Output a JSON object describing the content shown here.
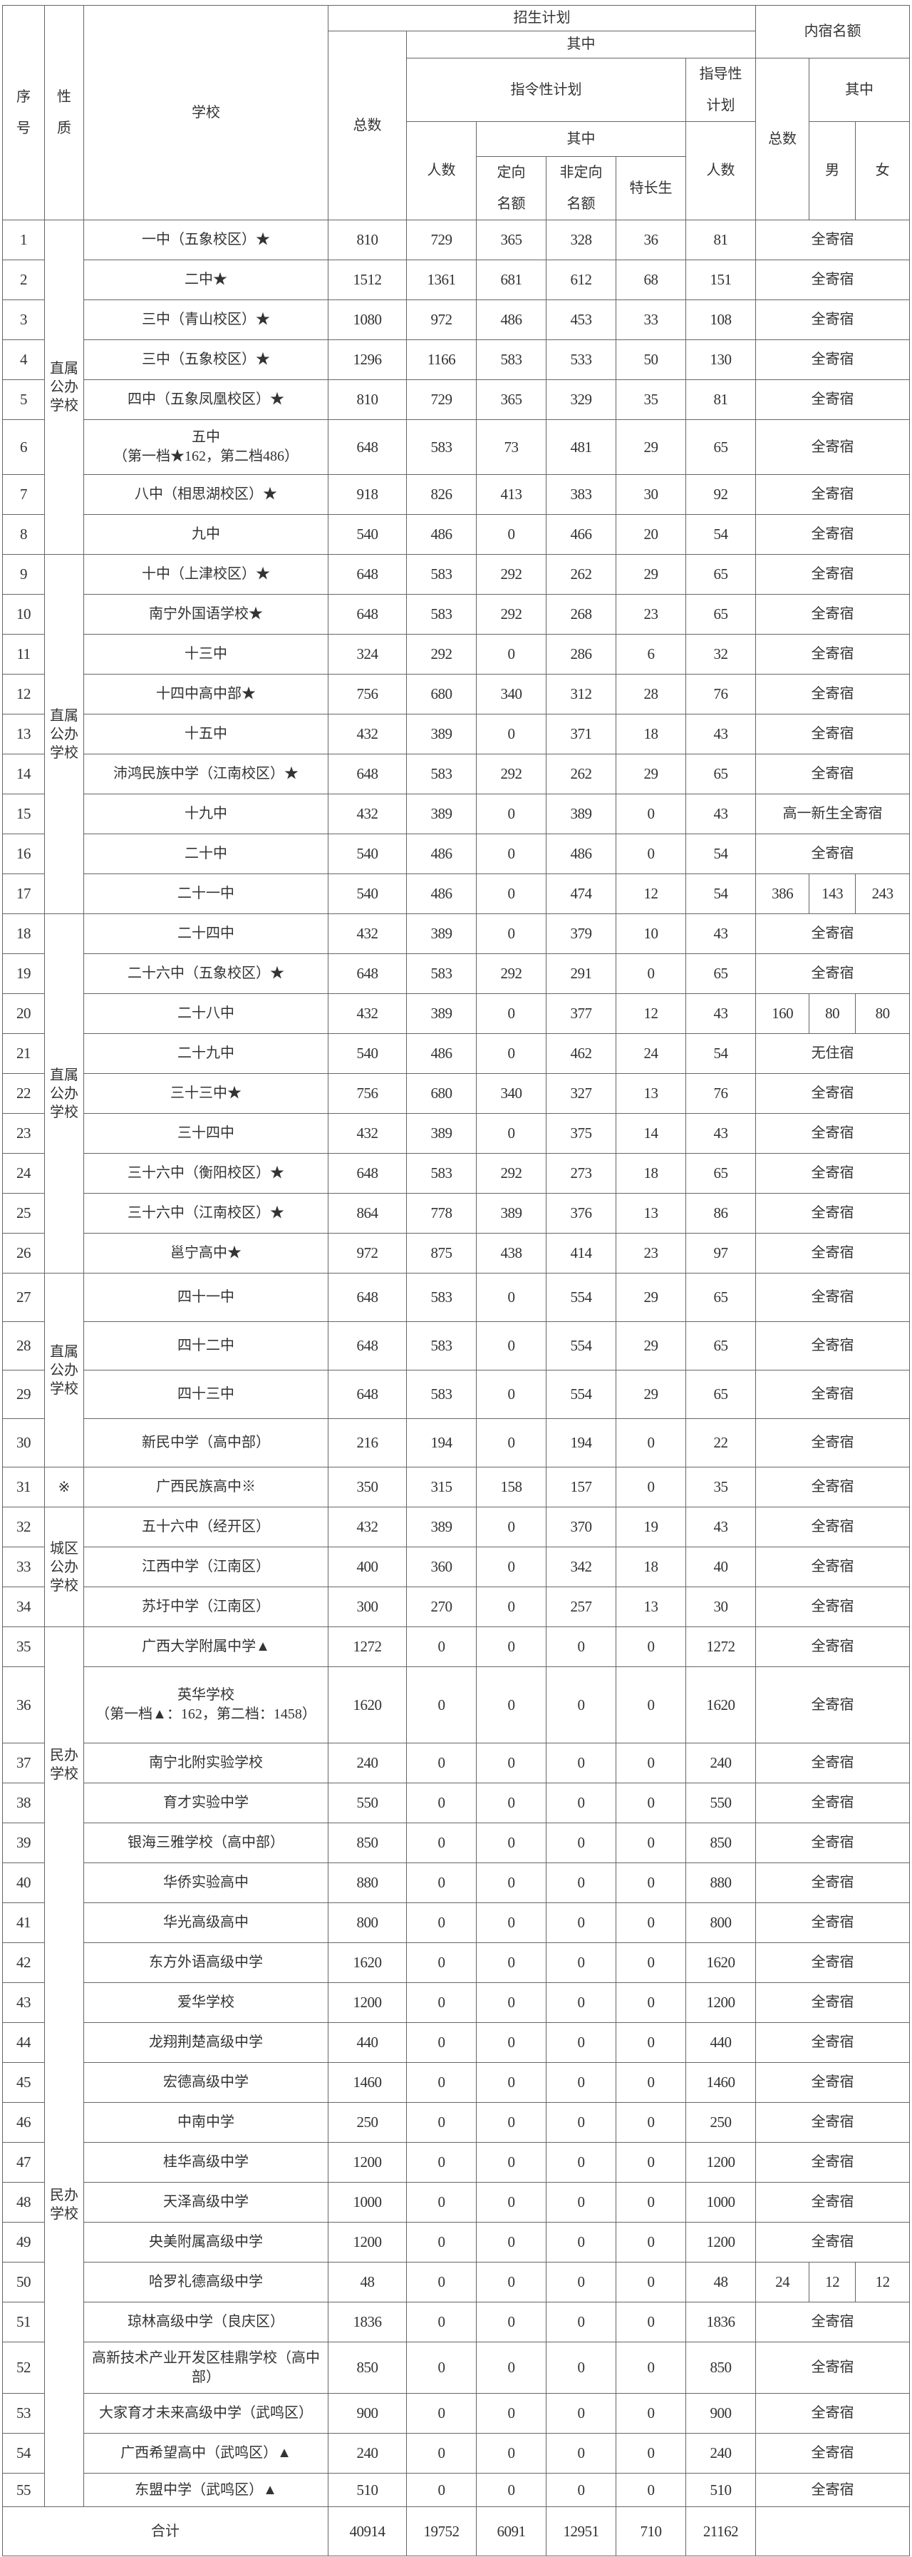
{
  "header": {
    "seq": "序号",
    "nature": "性质",
    "school": "学校",
    "plan": "招生计划",
    "plan_total": "总数",
    "plan_of_which": "其中",
    "directive": "指令性计划",
    "directive_count": "人数",
    "directive_of_which": "其中",
    "targeted": "定向名额",
    "non_targeted": "非定向名额",
    "special": "特长生",
    "guidance": "指导性计划",
    "guidance_count": "人数",
    "dorm": "内宿名额",
    "dorm_total": "总数",
    "dorm_of_which": "其中",
    "male": "男",
    "female": "女"
  },
  "groups": [
    {
      "label": "直属公办学校",
      "first": 1,
      "last": 8
    },
    {
      "label": "直属公办学校",
      "first": 9,
      "last": 17
    },
    {
      "label": "直属公办学校",
      "first": 18,
      "last": 26
    },
    {
      "label": "直属公办学校",
      "first": 27,
      "last": 30
    },
    {
      "label": "※",
      "first": 31,
      "last": 31
    },
    {
      "label": "城区公办学校",
      "first": 32,
      "last": 34
    },
    {
      "label": "民办学校",
      "first": 35,
      "last": 40
    },
    {
      "label": "民办学校",
      "first": 41,
      "last": 55
    }
  ],
  "rows": [
    {
      "seq": "1",
      "school": "一中（五象校区）★",
      "total": "810",
      "directive": "729",
      "targeted": "365",
      "non_targeted": "328",
      "special": "36",
      "guidance": "81",
      "dorm": "全寄宿"
    },
    {
      "seq": "2",
      "school": "二中★",
      "total": "1512",
      "directive": "1361",
      "targeted": "681",
      "non_targeted": "612",
      "special": "68",
      "guidance": "151",
      "dorm": "全寄宿"
    },
    {
      "seq": "3",
      "school": "三中（青山校区）★",
      "total": "1080",
      "directive": "972",
      "targeted": "486",
      "non_targeted": "453",
      "special": "33",
      "guidance": "108",
      "dorm": "全寄宿"
    },
    {
      "seq": "4",
      "school": "三中（五象校区）★",
      "total": "1296",
      "directive": "1166",
      "targeted": "583",
      "non_targeted": "533",
      "special": "50",
      "guidance": "130",
      "dorm": "全寄宿"
    },
    {
      "seq": "5",
      "school": "四中（五象凤凰校区）★",
      "total": "810",
      "directive": "729",
      "targeted": "365",
      "non_targeted": "329",
      "special": "35",
      "guidance": "81",
      "dorm": "全寄宿"
    },
    {
      "seq": "6",
      "school": "五中",
      "school_note": "（第一档★162，第二档486）",
      "total": "648",
      "directive": "583",
      "targeted": "73",
      "non_targeted": "481",
      "special": "29",
      "guidance": "65",
      "dorm": "全寄宿"
    },
    {
      "seq": "7",
      "school": "八中（相思湖校区）★",
      "total": "918",
      "directive": "826",
      "targeted": "413",
      "non_targeted": "383",
      "special": "30",
      "guidance": "92",
      "dorm": "全寄宿"
    },
    {
      "seq": "8",
      "school": "九中",
      "total": "540",
      "directive": "486",
      "targeted": "0",
      "non_targeted": "466",
      "special": "20",
      "guidance": "54",
      "dorm": "全寄宿"
    },
    {
      "seq": "9",
      "school": "十中（上津校区）★",
      "total": "648",
      "directive": "583",
      "targeted": "292",
      "non_targeted": "262",
      "special": "29",
      "guidance": "65",
      "dorm": "全寄宿"
    },
    {
      "seq": "10",
      "school": "南宁外国语学校★",
      "total": "648",
      "directive": "583",
      "targeted": "292",
      "non_targeted": "268",
      "special": "23",
      "guidance": "65",
      "dorm": "全寄宿"
    },
    {
      "seq": "11",
      "school": "十三中",
      "total": "324",
      "directive": "292",
      "targeted": "0",
      "non_targeted": "286",
      "special": "6",
      "guidance": "32",
      "dorm": "全寄宿"
    },
    {
      "seq": "12",
      "school": "十四中高中部★",
      "total": "756",
      "directive": "680",
      "targeted": "340",
      "non_targeted": "312",
      "special": "28",
      "guidance": "76",
      "dorm": "全寄宿"
    },
    {
      "seq": "13",
      "school": "十五中",
      "total": "432",
      "directive": "389",
      "targeted": "0",
      "non_targeted": "371",
      "special": "18",
      "guidance": "43",
      "dorm": "全寄宿"
    },
    {
      "seq": "14",
      "school": "沛鸿民族中学（江南校区）★",
      "total": "648",
      "directive": "583",
      "targeted": "292",
      "non_targeted": "262",
      "special": "29",
      "guidance": "65",
      "dorm": "全寄宿"
    },
    {
      "seq": "15",
      "school": "十九中",
      "total": "432",
      "directive": "389",
      "targeted": "0",
      "non_targeted": "389",
      "special": "0",
      "guidance": "43",
      "dorm": "高一新生全寄宿"
    },
    {
      "seq": "16",
      "school": "二十中",
      "total": "540",
      "directive": "486",
      "targeted": "0",
      "non_targeted": "486",
      "special": "0",
      "guidance": "54",
      "dorm": "全寄宿"
    },
    {
      "seq": "17",
      "school": "二十一中",
      "total": "540",
      "directive": "486",
      "targeted": "0",
      "non_targeted": "474",
      "special": "12",
      "guidance": "54",
      "dorm_total": "386",
      "dorm_male": "143",
      "dorm_female": "243"
    },
    {
      "seq": "18",
      "school": "二十四中",
      "total": "432",
      "directive": "389",
      "targeted": "0",
      "non_targeted": "379",
      "special": "10",
      "guidance": "43",
      "dorm": "全寄宿"
    },
    {
      "seq": "19",
      "school": "二十六中（五象校区）★",
      "total": "648",
      "directive": "583",
      "targeted": "292",
      "non_targeted": "291",
      "special": "0",
      "guidance": "65",
      "dorm": "全寄宿"
    },
    {
      "seq": "20",
      "school": "二十八中",
      "total": "432",
      "directive": "389",
      "targeted": "0",
      "non_targeted": "377",
      "special": "12",
      "guidance": "43",
      "dorm_total": "160",
      "dorm_male": "80",
      "dorm_female": "80"
    },
    {
      "seq": "21",
      "school": "二十九中",
      "total": "540",
      "directive": "486",
      "targeted": "0",
      "non_targeted": "462",
      "special": "24",
      "guidance": "54",
      "dorm": "无住宿"
    },
    {
      "seq": "22",
      "school": "三十三中★",
      "total": "756",
      "directive": "680",
      "targeted": "340",
      "non_targeted": "327",
      "special": "13",
      "guidance": "76",
      "dorm": "全寄宿"
    },
    {
      "seq": "23",
      "school": "三十四中",
      "total": "432",
      "directive": "389",
      "targeted": "0",
      "non_targeted": "375",
      "special": "14",
      "guidance": "43",
      "dorm": "全寄宿"
    },
    {
      "seq": "24",
      "school": "三十六中（衡阳校区）★",
      "total": "648",
      "directive": "583",
      "targeted": "292",
      "non_targeted": "273",
      "special": "18",
      "guidance": "65",
      "dorm": "全寄宿"
    },
    {
      "seq": "25",
      "school": "三十六中（江南校区）★",
      "total": "864",
      "directive": "778",
      "targeted": "389",
      "non_targeted": "376",
      "special": "13",
      "guidance": "86",
      "dorm": "全寄宿"
    },
    {
      "seq": "26",
      "school": "邕宁高中★",
      "total": "972",
      "directive": "875",
      "targeted": "438",
      "non_targeted": "414",
      "special": "23",
      "guidance": "97",
      "dorm": "全寄宿"
    },
    {
      "seq": "27",
      "school": "四十一中",
      "total": "648",
      "directive": "583",
      "targeted": "0",
      "non_targeted": "554",
      "special": "29",
      "guidance": "65",
      "dorm": "全寄宿"
    },
    {
      "seq": "28",
      "school": "四十二中",
      "total": "648",
      "directive": "583",
      "targeted": "0",
      "non_targeted": "554",
      "special": "29",
      "guidance": "65",
      "dorm": "全寄宿"
    },
    {
      "seq": "29",
      "school": "四十三中",
      "total": "648",
      "directive": "583",
      "targeted": "0",
      "non_targeted": "554",
      "special": "29",
      "guidance": "65",
      "dorm": "全寄宿"
    },
    {
      "seq": "30",
      "school": "新民中学（高中部）",
      "total": "216",
      "directive": "194",
      "targeted": "0",
      "non_targeted": "194",
      "special": "0",
      "guidance": "22",
      "dorm": "全寄宿"
    },
    {
      "seq": "31",
      "school": "广西民族高中※",
      "total": "350",
      "directive": "315",
      "targeted": "158",
      "non_targeted": "157",
      "special": "0",
      "guidance": "35",
      "dorm": "全寄宿"
    },
    {
      "seq": "32",
      "school": "五十六中（经开区）",
      "total": "432",
      "directive": "389",
      "targeted": "0",
      "non_targeted": "370",
      "special": "19",
      "guidance": "43",
      "dorm": "全寄宿"
    },
    {
      "seq": "33",
      "school": "江西中学（江南区）",
      "total": "400",
      "directive": "360",
      "targeted": "0",
      "non_targeted": "342",
      "special": "18",
      "guidance": "40",
      "dorm": "全寄宿"
    },
    {
      "seq": "34",
      "school": "苏圩中学（江南区）",
      "total": "300",
      "directive": "270",
      "targeted": "0",
      "non_targeted": "257",
      "special": "13",
      "guidance": "30",
      "dorm": "全寄宿"
    },
    {
      "seq": "35",
      "school": "广西大学附属中学▲",
      "total": "1272",
      "directive": "0",
      "targeted": "0",
      "non_targeted": "0",
      "special": "0",
      "guidance": "1272",
      "dorm": "全寄宿"
    },
    {
      "seq": "36",
      "school": "英华学校",
      "school_note": "（第一档▲：162，第二档：1458）",
      "total": "1620",
      "directive": "0",
      "targeted": "0",
      "non_targeted": "0",
      "special": "0",
      "guidance": "1620",
      "dorm": "全寄宿"
    },
    {
      "seq": "37",
      "school": "南宁北附实验学校",
      "total": "240",
      "directive": "0",
      "targeted": "0",
      "non_targeted": "0",
      "special": "0",
      "guidance": "240",
      "dorm": "全寄宿"
    },
    {
      "seq": "38",
      "school": "育才实验中学",
      "total": "550",
      "directive": "0",
      "targeted": "0",
      "non_targeted": "0",
      "special": "0",
      "guidance": "550",
      "dorm": "全寄宿"
    },
    {
      "seq": "39",
      "school": "银海三雅学校（高中部）",
      "total": "850",
      "directive": "0",
      "targeted": "0",
      "non_targeted": "0",
      "special": "0",
      "guidance": "850",
      "dorm": "全寄宿"
    },
    {
      "seq": "40",
      "school": "华侨实验高中",
      "total": "880",
      "directive": "0",
      "targeted": "0",
      "non_targeted": "0",
      "special": "0",
      "guidance": "880",
      "dorm": "全寄宿"
    },
    {
      "seq": "41",
      "school": "华光高级高中",
      "total": "800",
      "directive": "0",
      "targeted": "0",
      "non_targeted": "0",
      "special": "0",
      "guidance": "800",
      "dorm": "全寄宿"
    },
    {
      "seq": "42",
      "school": "东方外语高级中学",
      "total": "1620",
      "directive": "0",
      "targeted": "0",
      "non_targeted": "0",
      "special": "0",
      "guidance": "1620",
      "dorm": "全寄宿"
    },
    {
      "seq": "43",
      "school": "爱华学校",
      "total": "1200",
      "directive": "0",
      "targeted": "0",
      "non_targeted": "0",
      "special": "0",
      "guidance": "1200",
      "dorm": "全寄宿"
    },
    {
      "seq": "44",
      "school": "龙翔荆楚高级中学",
      "total": "440",
      "directive": "0",
      "targeted": "0",
      "non_targeted": "0",
      "special": "0",
      "guidance": "440",
      "dorm": "全寄宿"
    },
    {
      "seq": "45",
      "school": "宏德高级中学",
      "total": "1460",
      "directive": "0",
      "targeted": "0",
      "non_targeted": "0",
      "special": "0",
      "guidance": "1460",
      "dorm": "全寄宿"
    },
    {
      "seq": "46",
      "school": "中南中学",
      "total": "250",
      "directive": "0",
      "targeted": "0",
      "non_targeted": "0",
      "special": "0",
      "guidance": "250",
      "dorm": "全寄宿"
    },
    {
      "seq": "47",
      "school": "桂华高级中学",
      "total": "1200",
      "directive": "0",
      "targeted": "0",
      "non_targeted": "0",
      "special": "0",
      "guidance": "1200",
      "dorm": "全寄宿"
    },
    {
      "seq": "48",
      "school": "天泽高级中学",
      "total": "1000",
      "directive": "0",
      "targeted": "0",
      "non_targeted": "0",
      "special": "0",
      "guidance": "1000",
      "dorm": "全寄宿"
    },
    {
      "seq": "49",
      "school": "央美附属高级中学",
      "total": "1200",
      "directive": "0",
      "targeted": "0",
      "non_targeted": "0",
      "special": "0",
      "guidance": "1200",
      "dorm": "全寄宿"
    },
    {
      "seq": "50",
      "school": "哈罗礼德高级中学",
      "total": "48",
      "directive": "0",
      "targeted": "0",
      "non_targeted": "0",
      "special": "0",
      "guidance": "48",
      "dorm_total": "24",
      "dorm_male": "12",
      "dorm_female": "12"
    },
    {
      "seq": "51",
      "school": "琼林高级中学（良庆区）",
      "total": "1836",
      "directive": "0",
      "targeted": "0",
      "non_targeted": "0",
      "special": "0",
      "guidance": "1836",
      "dorm": "全寄宿"
    },
    {
      "seq": "52",
      "school": "高新技术产业开发区桂鼎学校（高中部）",
      "total": "850",
      "directive": "0",
      "targeted": "0",
      "non_targeted": "0",
      "special": "0",
      "guidance": "850",
      "dorm": "全寄宿"
    },
    {
      "seq": "53",
      "school": "大家育才未来高级中学（武鸣区）",
      "total": "900",
      "directive": "0",
      "targeted": "0",
      "non_targeted": "0",
      "special": "0",
      "guidance": "900",
      "dorm": "全寄宿"
    },
    {
      "seq": "54",
      "school": "广西希望高中（武鸣区）▲",
      "total": "240",
      "directive": "0",
      "targeted": "0",
      "non_targeted": "0",
      "special": "0",
      "guidance": "240",
      "dorm": "全寄宿"
    },
    {
      "seq": "55",
      "school": "东盟中学（武鸣区）▲",
      "total": "510",
      "directive": "0",
      "targeted": "0",
      "non_targeted": "0",
      "special": "0",
      "guidance": "510",
      "dorm": "全寄宿"
    }
  ],
  "total_row": {
    "label": "合计",
    "total": "40914",
    "directive": "19752",
    "targeted": "6091",
    "non_targeted": "12951",
    "special": "710",
    "guidance": "21162"
  }
}
